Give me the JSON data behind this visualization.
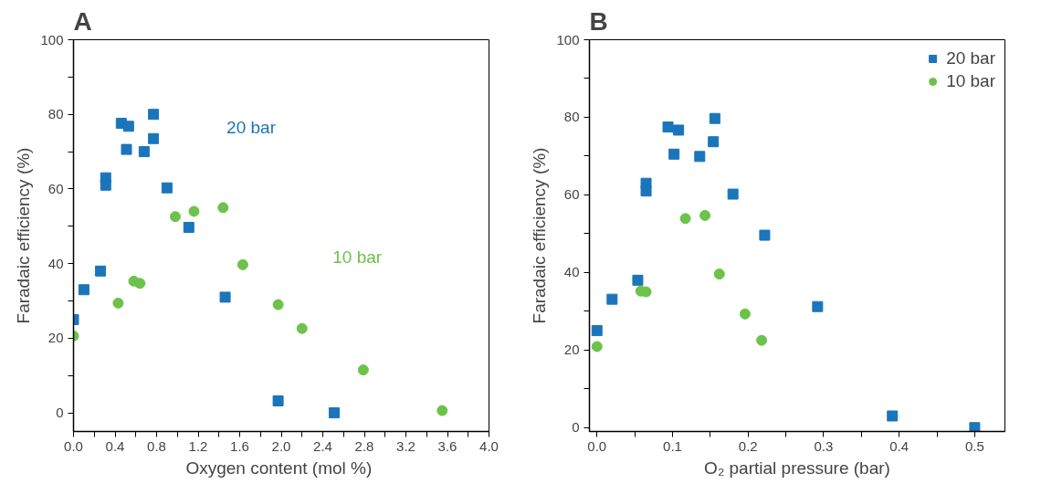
{
  "chart_data": [
    {
      "type": "scatter",
      "title": "A",
      "xlabel": "Oxygen content (mol  %)",
      "ylabel": "Faradaic efficiency (%)",
      "xlim": [
        0,
        4.0
      ],
      "ylim": [
        -5,
        100
      ],
      "xticks": [
        {
          "value": 0,
          "label": "0.0"
        },
        {
          "value": 0.2,
          "label": null
        },
        0.4,
        {
          "value": 0.6,
          "label": null
        },
        0.8,
        {
          "value": 1.0,
          "label": null
        },
        1.2,
        {
          "value": 1.4,
          "label": null
        },
        1.6,
        {
          "value": 1.8,
          "label": null
        },
        {
          "value": 2,
          "label": "2.0"
        },
        {
          "value": 2.2,
          "label": null
        },
        2.4,
        {
          "value": 2.6,
          "label": null
        },
        2.8,
        {
          "value": 3.0,
          "label": null
        },
        3.2,
        {
          "value": 3.4,
          "label": null
        },
        3.6,
        {
          "value": 3.8,
          "label": null
        },
        {
          "value": 4,
          "label": "4.0"
        }
      ],
      "yticks": [
        0,
        {
          "value": 10,
          "label": null
        },
        20,
        {
          "value": 30,
          "label": null
        },
        40,
        {
          "value": 50,
          "label": null
        },
        60,
        {
          "value": 70,
          "label": null
        },
        80,
        {
          "value": 90,
          "label": null
        },
        100
      ],
      "grid": false,
      "legend": false,
      "series": [
        {
          "name": "20 bar",
          "color": "#1a75bb",
          "marker": "square",
          "x": [
            0,
            0.1,
            0.26,
            0.31,
            0.31,
            0.46,
            0.53,
            0.51,
            0.68,
            0.77,
            0.77,
            0.9,
            1.11,
            1.46,
            1.97,
            2.51
          ],
          "values": [
            25,
            33,
            38,
            63,
            61,
            77.6,
            76.8,
            70.6,
            70,
            73.5,
            80,
            60.3,
            49.7,
            31,
            3.2,
            0
          ]
        },
        {
          "name": "10 bar",
          "color": "#6cc24a",
          "marker": "circle",
          "x": [
            0,
            0.43,
            0.58,
            0.64,
            0.98,
            1.16,
            1.42,
            1.44,
            1.63,
            1.97,
            2.2,
            2.79,
            3.55
          ],
          "values": [
            20.6,
            29.4,
            35.3,
            34.7,
            52.6,
            54,
            null,
            55,
            39.7,
            29,
            22.6,
            11.5,
            0.6
          ]
        }
      ]
    },
    {
      "type": "scatter",
      "title": "B",
      "xlabel": "O₂ partial pressure (bar)",
      "ylabel": "Faradaic efficiency (%)",
      "xlim": [
        -0.01,
        0.54
      ],
      "ylim": [
        -1,
        100
      ],
      "xticks": [
        {
          "value": 0,
          "label": "0.0"
        },
        {
          "value": 0.05,
          "label": null
        },
        0.1,
        {
          "value": 0.15,
          "label": null
        },
        0.2,
        {
          "value": 0.25,
          "label": null
        },
        0.3,
        {
          "value": 0.35,
          "label": null
        },
        0.4,
        {
          "value": 0.45,
          "label": null
        },
        0.5
      ],
      "yticks": [
        0,
        {
          "value": 10,
          "label": null
        },
        20,
        {
          "value": 30,
          "label": null
        },
        40,
        {
          "value": 50,
          "label": null
        },
        60,
        {
          "value": 70,
          "label": null
        },
        80,
        {
          "value": 90,
          "label": null
        },
        100
      ],
      "grid": false,
      "legend": "top right",
      "series": [
        {
          "name": "20 bar",
          "color": "#1a75bb",
          "marker": "square",
          "x": [
            0,
            0.02,
            0.054,
            0.065,
            0.065,
            0.094,
            0.108,
            0.102,
            0.136,
            0.154,
            0.156,
            0.18,
            0.222,
            0.292,
            0.391,
            0.5
          ],
          "values": [
            25,
            33.1,
            38,
            63,
            61,
            77.5,
            76.7,
            70.5,
            69.9,
            73.7,
            79.7,
            60.2,
            49.6,
            31.2,
            3,
            0
          ]
        },
        {
          "name": "10 bar",
          "color": "#6cc24a",
          "marker": "circle",
          "x": [
            0,
            0.058,
            0.065,
            0.117,
            0.143,
            0.162,
            0.196,
            0.218
          ],
          "values": [
            20.9,
            35.2,
            35,
            53.9,
            54.7,
            39.6,
            29.3,
            22.5
          ]
        }
      ]
    }
  ]
}
